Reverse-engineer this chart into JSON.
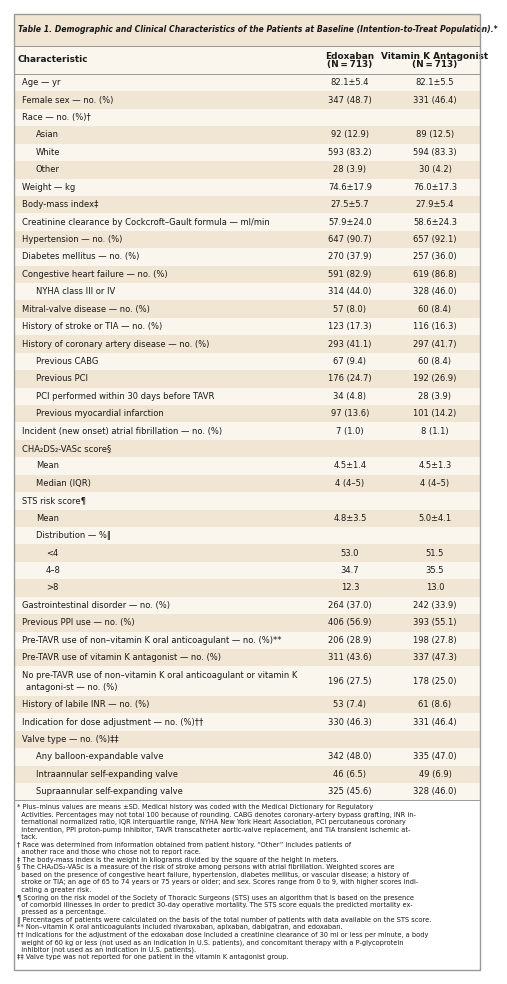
{
  "title": "Table 1. Demographic and Clinical Characteristics of the Patients at Baseline (Intention-to-Treat Population).*",
  "bg_color": "#faf6ed",
  "shade_color": "#f0e6d3",
  "header_bg": "#f0e6d3",
  "border_color": "#999999",
  "text_color": "#1a1a1a",
  "rows": [
    {
      "label": "Age — yr",
      "col2": "82.1±5.4",
      "col3": "82.1±5.5",
      "indent": 0,
      "shade": false,
      "bold": false
    },
    {
      "label": "Female sex — no. (%)",
      "col2": "347 (48.7)",
      "col3": "331 (46.4)",
      "indent": 0,
      "shade": true,
      "bold": false
    },
    {
      "label": "Race — no. (%)†",
      "col2": "",
      "col3": "",
      "indent": 0,
      "shade": false,
      "bold": false
    },
    {
      "label": "Asian",
      "col2": "92 (12.9)",
      "col3": "89 (12.5)",
      "indent": 1,
      "shade": true,
      "bold": false
    },
    {
      "label": "White",
      "col2": "593 (83.2)",
      "col3": "594 (83.3)",
      "indent": 1,
      "shade": false,
      "bold": false
    },
    {
      "label": "Other",
      "col2": "28 (3.9)",
      "col3": "30 (4.2)",
      "indent": 1,
      "shade": true,
      "bold": false
    },
    {
      "label": "Weight — kg",
      "col2": "74.6±17.9",
      "col3": "76.0±17.3",
      "indent": 0,
      "shade": false,
      "bold": false
    },
    {
      "label": "Body-mass index‡",
      "col2": "27.5±5.7",
      "col3": "27.9±5.4",
      "indent": 0,
      "shade": true,
      "bold": false
    },
    {
      "label": "Creatinine clearance by Cockcroft–Gault formula — ml/min",
      "col2": "57.9±24.0",
      "col3": "58.6±24.3",
      "indent": 0,
      "shade": false,
      "bold": false
    },
    {
      "label": "Hypertension — no. (%)",
      "col2": "647 (90.7)",
      "col3": "657 (92.1)",
      "indent": 0,
      "shade": true,
      "bold": false
    },
    {
      "label": "Diabetes mellitus — no. (%)",
      "col2": "270 (37.9)",
      "col3": "257 (36.0)",
      "indent": 0,
      "shade": false,
      "bold": false
    },
    {
      "label": "Congestive heart failure — no. (%)",
      "col2": "591 (82.9)",
      "col3": "619 (86.8)",
      "indent": 0,
      "shade": true,
      "bold": false
    },
    {
      "label": "NYHA class III or IV",
      "col2": "314 (44.0)",
      "col3": "328 (46.0)",
      "indent": 1,
      "shade": false,
      "bold": false
    },
    {
      "label": "Mitral-valve disease — no. (%)",
      "col2": "57 (8.0)",
      "col3": "60 (8.4)",
      "indent": 0,
      "shade": true,
      "bold": false
    },
    {
      "label": "History of stroke or TIA — no. (%)",
      "col2": "123 (17.3)",
      "col3": "116 (16.3)",
      "indent": 0,
      "shade": false,
      "bold": false
    },
    {
      "label": "History of coronary artery disease — no. (%)",
      "col2": "293 (41.1)",
      "col3": "297 (41.7)",
      "indent": 0,
      "shade": true,
      "bold": false
    },
    {
      "label": "Previous CABG",
      "col2": "67 (9.4)",
      "col3": "60 (8.4)",
      "indent": 1,
      "shade": false,
      "bold": false
    },
    {
      "label": "Previous PCI",
      "col2": "176 (24.7)",
      "col3": "192 (26.9)",
      "indent": 1,
      "shade": true,
      "bold": false
    },
    {
      "label": "PCI performed within 30 days before TAVR",
      "col2": "34 (4.8)",
      "col3": "28 (3.9)",
      "indent": 1,
      "shade": false,
      "bold": false
    },
    {
      "label": "Previous myocardial infarction",
      "col2": "97 (13.6)",
      "col3": "101 (14.2)",
      "indent": 1,
      "shade": true,
      "bold": false
    },
    {
      "label": "Incident (new onset) atrial fibrillation — no. (%)",
      "col2": "7 (1.0)",
      "col3": "8 (1.1)",
      "indent": 0,
      "shade": false,
      "bold": false
    },
    {
      "label": "CHA₂DS₂-VASc score§",
      "col2": "",
      "col3": "",
      "indent": 0,
      "shade": true,
      "bold": false
    },
    {
      "label": "Mean",
      "col2": "4.5±1.4",
      "col3": "4.5±1.3",
      "indent": 1,
      "shade": false,
      "bold": false
    },
    {
      "label": "Median (IQR)",
      "col2": "4 (4–5)",
      "col3": "4 (4–5)",
      "indent": 1,
      "shade": true,
      "bold": false
    },
    {
      "label": "STS risk score¶",
      "col2": "",
      "col3": "",
      "indent": 0,
      "shade": false,
      "bold": false
    },
    {
      "label": "Mean",
      "col2": "4.8±3.5",
      "col3": "5.0±4.1",
      "indent": 1,
      "shade": true,
      "bold": false
    },
    {
      "label": "Distribution — %‖",
      "col2": "",
      "col3": "",
      "indent": 1,
      "shade": false,
      "bold": false
    },
    {
      "label": "<4",
      "col2": "53.0",
      "col3": "51.5",
      "indent": 2,
      "shade": true,
      "bold": false
    },
    {
      "label": "4–8",
      "col2": "34.7",
      "col3": "35.5",
      "indent": 2,
      "shade": false,
      "bold": false
    },
    {
      "label": ">8",
      "col2": "12.3",
      "col3": "13.0",
      "indent": 2,
      "shade": true,
      "bold": false
    },
    {
      "label": "Gastrointestinal disorder — no. (%)",
      "col2": "264 (37.0)",
      "col3": "242 (33.9)",
      "indent": 0,
      "shade": false,
      "bold": false
    },
    {
      "label": "Previous PPI use — no. (%)",
      "col2": "406 (56.9)",
      "col3": "393 (55.1)",
      "indent": 0,
      "shade": true,
      "bold": false
    },
    {
      "label": "Pre-TAVR use of non–vitamin K oral anticoagulant — no. (%)**",
      "col2": "206 (28.9)",
      "col3": "198 (27.8)",
      "indent": 0,
      "shade": false,
      "bold": false
    },
    {
      "label": "Pre-TAVR use of vitamin K antagonist — no. (%)",
      "col2": "311 (43.6)",
      "col3": "337 (47.3)",
      "indent": 0,
      "shade": true,
      "bold": false
    },
    {
      "label": "No pre-TAVR use of non–vitamin K oral anticoagulant or vitamin K\nantagoni­st — no. (%)",
      "col2": "196 (27.5)",
      "col3": "178 (25.0)",
      "indent": 0,
      "shade": false,
      "bold": false,
      "multiline": true
    },
    {
      "label": "History of labile INR — no. (%)",
      "col2": "53 (7.4)",
      "col3": "61 (8.6)",
      "indent": 0,
      "shade": true,
      "bold": false
    },
    {
      "label": "Indication for dose adjustment — no. (%)††",
      "col2": "330 (46.3)",
      "col3": "331 (46.4)",
      "indent": 0,
      "shade": false,
      "bold": false
    },
    {
      "label": "Valve type — no. (%)‡‡",
      "col2": "",
      "col3": "",
      "indent": 0,
      "shade": true,
      "bold": false
    },
    {
      "label": "Any balloon-expandable valve",
      "col2": "342 (48.0)",
      "col3": "335 (47.0)",
      "indent": 1,
      "shade": false,
      "bold": false
    },
    {
      "label": "Intraannular self-expanding valve",
      "col2": "46 (6.5)",
      "col3": "49 (6.9)",
      "indent": 1,
      "shade": true,
      "bold": false
    },
    {
      "label": "Supraannular self-expanding valve",
      "col2": "325 (45.6)",
      "col3": "328 (46.0)",
      "indent": 1,
      "shade": false,
      "bold": false
    }
  ],
  "footnote_lines": [
    "* Plus–minus values are means ±SD. Medical history was coded with the Medical Dictionary for Regulatory",
    "  Activities. Percentages may not total 100 because of rounding. CABG denotes coronary-artery bypass grafting, INR in-",
    "  ternational normalized ratio, IQR interquartile range, NYHA New York Heart Association, PCI percutaneous coronary",
    "  intervention, PPI proton-pump inhibitor, TAVR transcatheter aortic-valve replacement, and TIA transient ischemic at-",
    "  tack.",
    "† Race was determined from information obtained from patient history. “Other” includes patients of",
    "  another race and those who chose not to report race.",
    "‡ The body-mass index is the weight in kilograms divided by the square of the height in meters.",
    "§ The CHA₂DS₂-VASc is a measure of the risk of stroke among persons with atrial fibrillation. Weighted scores are",
    "  based on the presence of congestive heart failure, hypertension, diabetes mellitus, or vascular disease; a history of",
    "  stroke or TIA; an age of 65 to 74 years or 75 years or older; and sex. Scores range from 0 to 9, with higher scores indi-",
    "  cating a greater risk.",
    "¶ Scoring on the risk model of the Society of Thoracic Surgeons (STS) uses an algorithm that is based on the presence",
    "  of comorbid illnesses in order to predict 30-day operative mortality. The STS score equals the predicted mortality ex-",
    "  pressed as a percentage.",
    "‖ Percentages of patients were calculated on the basis of the total number of patients with data available on the STS score.",
    "** Non–vitamin K oral anticoagulants included rivaroxaban, apixaban, dabigatran, and edoxaban.",
    "†† Indications for the adjustment of the edoxaban dose included a creatinine clearance of 30 ml or less per minute, a body",
    "  weight of 60 kg or less (not used as an indication in U.S. patients), and concomitant therapy with a P-glycoprotein",
    "  inhibitor (not used as an indication in U.S. patients).",
    "‡‡ Valve type was not reported for one patient in the vitamin K antagonist group."
  ]
}
